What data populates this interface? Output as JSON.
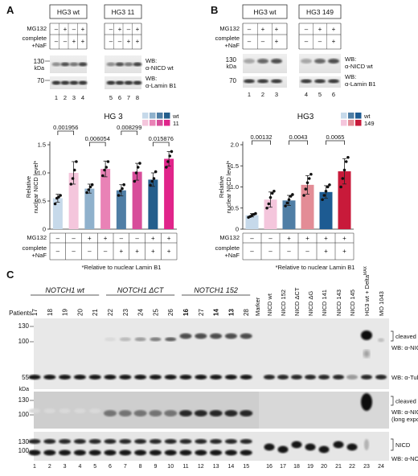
{
  "panelA": {
    "label": "A",
    "cell_lines": [
      "HG3 wt",
      "HG3 11"
    ],
    "rows": [
      {
        "name": "MG132",
        "marks": [
          "–",
          "+",
          "–",
          "+",
          "–",
          "+",
          "–",
          "+"
        ]
      },
      {
        "name": "complete +NaF",
        "marks": [
          "–",
          "–",
          "+",
          "+",
          "–",
          "–",
          "+",
          "+"
        ]
      }
    ],
    "row_label_1": "MG132",
    "row_label_2a": "complete",
    "row_label_2b": "+NaF",
    "mw": [
      "130",
      "kDa",
      "70"
    ],
    "wb1": "WB:",
    "wb1b": "α-NICD wt",
    "wb2": "WB:",
    "wb2b": "α-Lamin B1",
    "lanes": [
      "1",
      "2",
      "3",
      "4",
      "5",
      "6",
      "7",
      "8"
    ],
    "chart_title": "HG 3",
    "legend": [
      "wt",
      "11"
    ],
    "ylabel1": "Relative",
    "ylabel2": "nuclear NICD level*",
    "footnote": "*Relative to nuclear Lamin B1",
    "pvals": [
      "0.001956",
      "0.006054",
      "0.008299",
      "0.015876"
    ]
  },
  "panelB": {
    "label": "B",
    "cell_lines": [
      "HG3 wt",
      "HG3 149"
    ],
    "rows": [
      {
        "name": "MG132",
        "marks": [
          "–",
          "+",
          "+",
          "–",
          "+",
          "+"
        ]
      },
      {
        "name": "complete +NaF",
        "marks": [
          "–",
          "–",
          "+",
          "–",
          "–",
          "+"
        ]
      }
    ],
    "mw": [
      "130",
      "kDa",
      "70"
    ],
    "wb1": "WB:",
    "wb1b": "α-NICD wt",
    "wb2": "WB:",
    "wb2b": "α-Lamin B1",
    "lanes": [
      "1",
      "2",
      "3",
      "4",
      "5",
      "6"
    ],
    "chart_title": "HG3",
    "legend": [
      "wt",
      "149"
    ],
    "ylabel1": "Relative",
    "ylabel2": "nuclear NICD level*",
    "footnote": "*Relative to nuclear Lamin B1",
    "pvals": [
      "0.00132",
      "0.0043",
      "0.0065"
    ]
  },
  "panelC": {
    "label": "C",
    "groups": [
      "NOTCH1 wt",
      "NOTCH1 ΔCT",
      "NOTCH1 152"
    ],
    "patients_label": "Patients",
    "patients": [
      "17",
      "18",
      "19",
      "20",
      "21",
      "22",
      "23",
      "24",
      "25",
      "26",
      "16",
      "27",
      "14",
      "13",
      "28"
    ],
    "right_lanes": [
      "Marker",
      "NICD wt",
      "NICD 152",
      "NICD ΔCT",
      "NICD ΔG",
      "NICD 141",
      "NICD 143",
      "NICD 145",
      "HG3 wt + Delta",
      "MO 1043"
    ],
    "delta_sup": "MAX",
    "lane_numbers": [
      "1",
      "2",
      "3",
      "4",
      "5",
      "6",
      "7",
      "8",
      "9",
      "10",
      "11",
      "12",
      "13",
      "14",
      "15",
      "16",
      "17",
      "18",
      "19",
      "20",
      "21",
      "22",
      "23",
      "24"
    ],
    "kda": "kDa",
    "blot1_mw": [
      "130",
      "100",
      "55"
    ],
    "blot2_mw": [
      "130",
      "100"
    ],
    "blot3_mw": [
      "130",
      "100"
    ],
    "labels": {
      "cleaved1": "cleaved NICD",
      "wb_nicd": "WB: α-NICD",
      "wb_tub": "WB: α-Tubulin",
      "cleaved2": "cleaved NICD",
      "wb_nicd_long1": "WB: α-NICD",
      "wb_nicd_long2": "(long exposure)",
      "nicd": "NICD",
      "wb_notch": "WB: α-NOTCH1*"
    }
  },
  "chart_data": [
    {
      "type": "bar",
      "title": "HG 3",
      "ylabel": "Relative nuclear NICD level*",
      "ylim": [
        0,
        1.5
      ],
      "yticks": [
        0,
        0.5,
        1.0,
        1.5
      ],
      "categories": [
        "1",
        "2",
        "3",
        "4",
        "5",
        "6",
        "7",
        "8"
      ],
      "series": [
        {
          "name": "wt",
          "values": [
            0.55,
            1.0,
            0.72,
            1.07,
            0.69,
            1.02,
            0.88,
            1.25
          ]
        }
      ],
      "errors": [
        0.07,
        0.2,
        0.08,
        0.14,
        0.1,
        0.15,
        0.12,
        0.13
      ],
      "colors": [
        "#c6d9ea",
        "#f4c6dc",
        "#8fb1cc",
        "#e982b6",
        "#4f7ea5",
        "#d74d9a",
        "#245e8c",
        "#e0248a"
      ],
      "mg132": [
        "–",
        "–",
        "+",
        "+",
        "–",
        "–",
        "+",
        "+"
      ],
      "complete_naf": [
        "–",
        "–",
        "–",
        "–",
        "+",
        "+",
        "+",
        "+"
      ],
      "points": [
        [
          0.45,
          0.55,
          0.57,
          0.6
        ],
        [
          0.8,
          0.9,
          1.05,
          1.2
        ],
        [
          0.65,
          0.7,
          0.75,
          0.79
        ],
        [
          0.95,
          1.05,
          1.1,
          1.2
        ],
        [
          0.6,
          0.68,
          0.72,
          0.79
        ],
        [
          0.85,
          1.0,
          1.1,
          1.17
        ],
        [
          0.78,
          0.85,
          0.9,
          1.02
        ],
        [
          1.1,
          1.2,
          1.3,
          1.38
        ]
      ],
      "brackets": [
        {
          "from": 0,
          "to": 1,
          "label": "0.001956"
        },
        {
          "from": 2,
          "to": 3,
          "label": "0.006054"
        },
        {
          "from": 4,
          "to": 5,
          "label": "0.008299"
        },
        {
          "from": 6,
          "to": 7,
          "label": "0.015876"
        }
      ]
    },
    {
      "type": "bar",
      "title": "HG3",
      "ylabel": "Relative nuclear NICD level*",
      "ylim": [
        0,
        2.0
      ],
      "yticks": [
        0,
        0.5,
        1.0,
        1.5,
        2.0
      ],
      "categories": [
        "1",
        "2",
        "3",
        "4",
        "5",
        "6"
      ],
      "series": [
        {
          "name": "wt",
          "values": [
            0.33,
            0.7,
            0.68,
            1.05,
            0.88,
            1.37
          ]
        }
      ],
      "errors": [
        0.04,
        0.18,
        0.12,
        0.22,
        0.15,
        0.3
      ],
      "colors": [
        "#c6d9ea",
        "#f4c6dc",
        "#4f7ea5",
        "#e38c96",
        "#1d5b92",
        "#c81a3a"
      ],
      "mg132": [
        "–",
        "–",
        "+",
        "+",
        "+",
        "+"
      ],
      "complete_naf": [
        "–",
        "–",
        "–",
        "–",
        "+",
        "+"
      ],
      "points": [
        [
          0.28,
          0.3,
          0.33,
          0.35,
          0.37
        ],
        [
          0.5,
          0.6,
          0.75,
          0.85,
          0.9
        ],
        [
          0.55,
          0.62,
          0.7,
          0.78,
          0.82
        ],
        [
          0.8,
          0.95,
          1.1,
          1.2,
          1.3
        ],
        [
          0.7,
          0.8,
          0.9,
          1.0,
          1.05
        ],
        [
          1.0,
          1.2,
          1.4,
          1.6,
          1.7
        ]
      ],
      "brackets": [
        {
          "from": 0,
          "to": 1,
          "label": "0.00132"
        },
        {
          "from": 2,
          "to": 3,
          "label": "0.0043"
        },
        {
          "from": 4,
          "to": 5,
          "label": "0.0065"
        }
      ]
    }
  ]
}
